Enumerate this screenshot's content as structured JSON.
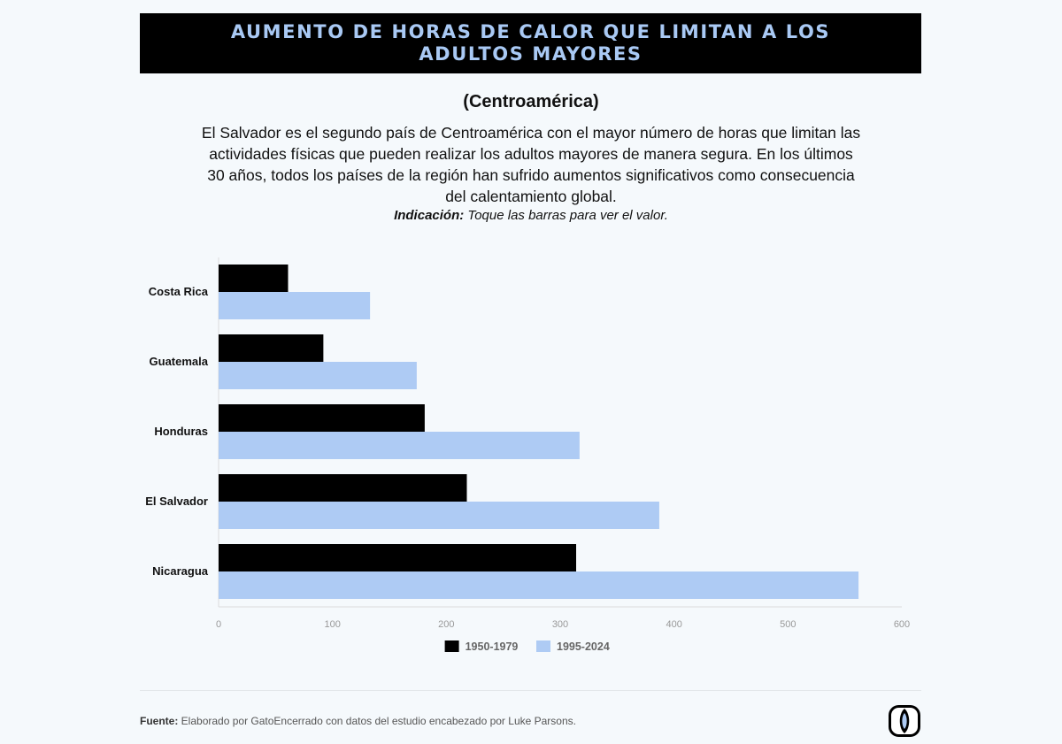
{
  "header": {
    "title": "AUMENTO DE HORAS DE CALOR QUE LIMITAN A LOS ADULTOS MAYORES",
    "subtitle": "(Centroamérica)",
    "description": "El Salvador es el segundo país de Centroamérica con el mayor número de horas que limitan las actividades físicas que pueden realizar los adultos mayores de manera segura. En los últimos 30 años, todos los países de la región han sufrido aumentos significativos como consecuencia del calentamiento global.",
    "hint_label": "Indicación:",
    "hint_text": " Toque las barras para ver el valor."
  },
  "footer": {
    "source_label": "Fuente:",
    "source_text": " Elaborado por GatoEncerrado con datos del estudio encabezado por Luke Parsons."
  },
  "chart_data": {
    "type": "bar",
    "orientation": "horizontal",
    "categories": [
      "Costa Rica",
      "Guatemala",
      "Honduras",
      "El Salvador",
      "Nicaragua"
    ],
    "series": [
      {
        "name": "1950-1979",
        "color": "#000000",
        "values": [
          61,
          92,
          181,
          218,
          314
        ]
      },
      {
        "name": "1995-2024",
        "color": "#aecbf4",
        "values": [
          133,
          174,
          317,
          387,
          562
        ]
      }
    ],
    "xlim": [
      0,
      600
    ],
    "xticks": [
      0,
      100,
      200,
      300,
      400,
      500,
      600
    ],
    "grid": false,
    "legend": "bottom"
  }
}
